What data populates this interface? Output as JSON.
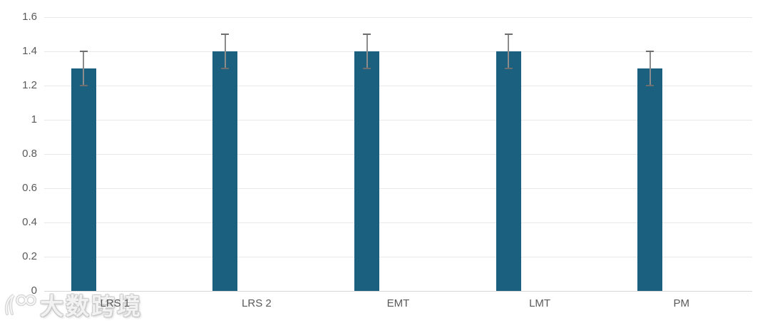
{
  "chart_data": {
    "type": "bar",
    "title": "",
    "xlabel": "",
    "ylabel": "",
    "categories": [
      "LRS 1",
      "LRS 2",
      "EMT",
      "LMT",
      "PM"
    ],
    "values": [
      1.3,
      1.4,
      1.4,
      1.4,
      1.3
    ],
    "error_bars": [
      0.1,
      0.1,
      0.1,
      0.1,
      0.1
    ],
    "ylim": [
      0,
      1.6
    ],
    "ytick_labels": [
      "0",
      "0.2",
      "0.4",
      "0.6",
      "0.8",
      "1",
      "1.2",
      "1.4",
      "1.6"
    ],
    "ytick_values": [
      0,
      0.2,
      0.4,
      0.6,
      0.8,
      1,
      1.2,
      1.4,
      1.6
    ],
    "grid": "horizontal",
    "legend": "none",
    "colors": {
      "bar_fill": "#1b617f",
      "error_line": "#8c8c8c",
      "error_cap": "#6e6e6e",
      "gridline": "#e8e8e8",
      "baseline": "#d6d6d6",
      "tick_label": "#595959"
    }
  },
  "watermark": {
    "text": "大数跨境",
    "logo": "100-swirl-logo",
    "color": "#cfcfcf"
  }
}
